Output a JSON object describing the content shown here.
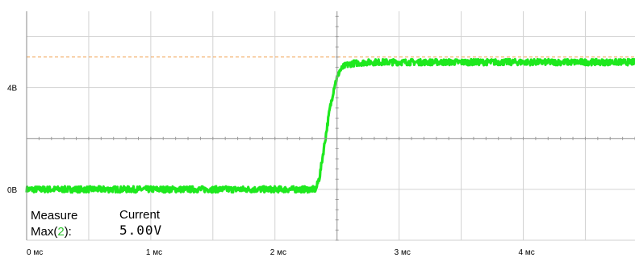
{
  "chart_data": {
    "type": "line",
    "title": "",
    "xlabel": "",
    "ylabel": "",
    "x_unit": "мс",
    "y_unit": "В",
    "xlim": [
      0,
      4.9
    ],
    "ylim": [
      -2.0,
      7.0
    ],
    "grid": true,
    "x_ticks": [
      {
        "value": 0,
        "label": "0 мс"
      },
      {
        "value": 1,
        "label": "1 мс"
      },
      {
        "value": 2,
        "label": "2 мс"
      },
      {
        "value": 3,
        "label": "3 мс"
      },
      {
        "value": 4,
        "label": "4 мс"
      }
    ],
    "y_ticks": [
      {
        "value": 0,
        "label": "0В"
      },
      {
        "value": 4,
        "label": "4В"
      }
    ],
    "marker_level": 5.2,
    "series": [
      {
        "name": "",
        "color": "#1ee81e",
        "x": [
          0,
          2.33,
          2.36,
          2.4,
          2.44,
          2.48,
          2.52,
          2.56,
          2.62,
          2.7,
          2.8,
          3.0,
          3.5,
          4.0,
          4.5,
          4.9
        ],
        "y": [
          0.0,
          0.0,
          0.5,
          1.8,
          3.1,
          4.1,
          4.65,
          4.85,
          4.95,
          4.98,
          5.0,
          5.0,
          5.0,
          5.0,
          5.0,
          5.0
        ]
      }
    ]
  },
  "measure": {
    "header_left": "Measure",
    "header_right": "Current",
    "row_label_prefix": "Max(",
    "row_channel": "2",
    "row_label_suffix": "):",
    "row_value": "5.00V"
  }
}
